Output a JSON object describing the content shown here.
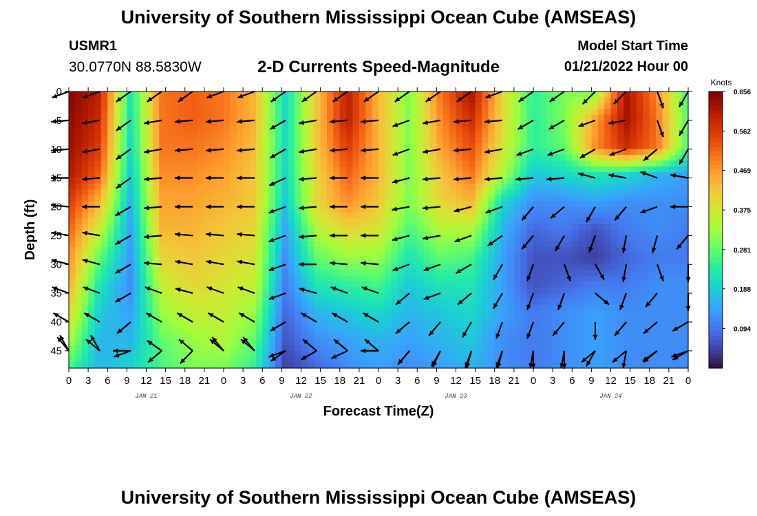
{
  "header": {
    "title": "University of Southern Mississippi Ocean Cube (AMSEAS)",
    "station_id": "USMR1",
    "station_coords": "30.0770N  88.5830W",
    "subtitle": "2-D Currents Speed-Magnitude",
    "start_label": "Model Start Time",
    "start_value": "01/21/2022 Hour 00"
  },
  "footer": {
    "title": "University of Southern Mississippi Ocean Cube (AMSEAS)"
  },
  "chart_data": {
    "type": "heatmap",
    "title": "2-D Currents Speed-Magnitude",
    "xlabel": "Forecast Time(Z)",
    "ylabel": "Depth (ft)",
    "x_tick_labels": [
      "0",
      "3",
      "6",
      "9",
      "12",
      "15",
      "18",
      "21",
      "0",
      "3",
      "6",
      "9",
      "12",
      "15",
      "18",
      "21",
      "0",
      "3",
      "6",
      "9",
      "12",
      "15",
      "18",
      "21",
      "0",
      "3",
      "6",
      "9",
      "12",
      "15",
      "18",
      "21",
      "0"
    ],
    "x_hours_range": [
      0,
      96
    ],
    "date_labels": [
      {
        "text": "JAN 21",
        "hour": 12
      },
      {
        "text": "JAN 22",
        "hour": 36
      },
      {
        "text": "JAN 23",
        "hour": 60
      },
      {
        "text": "JAN 24",
        "hour": 84
      }
    ],
    "y_ticks": [
      0,
      5,
      10,
      15,
      20,
      25,
      30,
      35,
      40,
      45
    ],
    "ylim": [
      48,
      0
    ],
    "colorbar": {
      "unit": "Knots",
      "labels": [
        "0.656",
        "0.562",
        "0.469",
        "0.375",
        "0.281",
        "0.188",
        "0.094"
      ],
      "range": [
        0,
        0.656
      ],
      "colors": [
        "#30123b",
        "#4145ab",
        "#4675ed",
        "#39a2fc",
        "#1bcfd4",
        "#24eca6",
        "#61fc6c",
        "#a4fc3b",
        "#d1e834",
        "#f3c63a",
        "#fe9b2d",
        "#f36315",
        "#d93806",
        "#b11901",
        "#7a0402"
      ]
    },
    "speed_knots": [
      [
        0.65,
        0.6,
        0.22,
        0.5,
        0.52,
        0.5,
        0.44,
        0.2,
        0.42,
        0.6,
        0.44,
        0.3,
        0.5,
        0.62,
        0.4,
        0.24,
        0.3,
        0.3,
        0.62,
        0.48,
        0.25
      ],
      [
        0.64,
        0.58,
        0.21,
        0.5,
        0.52,
        0.5,
        0.44,
        0.2,
        0.42,
        0.6,
        0.44,
        0.3,
        0.48,
        0.58,
        0.4,
        0.24,
        0.3,
        0.46,
        0.62,
        0.5,
        0.26
      ],
      [
        0.63,
        0.56,
        0.2,
        0.5,
        0.5,
        0.48,
        0.43,
        0.2,
        0.42,
        0.56,
        0.44,
        0.3,
        0.46,
        0.54,
        0.38,
        0.24,
        0.28,
        0.48,
        0.58,
        0.5,
        0.26
      ],
      [
        0.61,
        0.52,
        0.18,
        0.48,
        0.48,
        0.46,
        0.42,
        0.2,
        0.4,
        0.52,
        0.44,
        0.3,
        0.42,
        0.5,
        0.34,
        0.18,
        0.2,
        0.22,
        0.2,
        0.16,
        0.14
      ],
      [
        0.56,
        0.44,
        0.16,
        0.46,
        0.46,
        0.44,
        0.42,
        0.18,
        0.4,
        0.48,
        0.42,
        0.3,
        0.4,
        0.44,
        0.2,
        0.12,
        0.12,
        0.14,
        0.12,
        0.12,
        0.12
      ],
      [
        0.52,
        0.36,
        0.14,
        0.44,
        0.44,
        0.42,
        0.4,
        0.14,
        0.34,
        0.4,
        0.38,
        0.26,
        0.34,
        0.34,
        0.16,
        0.08,
        0.1,
        0.06,
        0.1,
        0.12,
        0.1
      ],
      [
        0.48,
        0.28,
        0.13,
        0.4,
        0.42,
        0.4,
        0.38,
        0.12,
        0.28,
        0.32,
        0.32,
        0.22,
        0.28,
        0.26,
        0.14,
        0.06,
        0.06,
        0.04,
        0.08,
        0.1,
        0.1
      ],
      [
        0.45,
        0.22,
        0.12,
        0.36,
        0.4,
        0.38,
        0.36,
        0.1,
        0.22,
        0.24,
        0.26,
        0.18,
        0.22,
        0.22,
        0.14,
        0.06,
        0.08,
        0.1,
        0.1,
        0.12,
        0.12
      ],
      [
        0.4,
        0.18,
        0.14,
        0.32,
        0.36,
        0.36,
        0.32,
        0.08,
        0.16,
        0.18,
        0.2,
        0.16,
        0.18,
        0.2,
        0.14,
        0.1,
        0.12,
        0.14,
        0.12,
        0.12,
        0.12
      ],
      [
        0.34,
        0.16,
        0.16,
        0.28,
        0.32,
        0.34,
        0.28,
        0.06,
        0.12,
        0.14,
        0.16,
        0.14,
        0.16,
        0.18,
        0.12,
        0.1,
        0.12,
        0.14,
        0.12,
        0.12,
        0.12
      ],
      [
        0.26,
        0.16,
        0.2,
        0.26,
        0.3,
        0.3,
        0.24,
        0.04,
        0.08,
        0.12,
        0.14,
        0.12,
        0.14,
        0.16,
        0.12,
        0.1,
        0.12,
        0.14,
        0.12,
        0.12,
        0.12
      ]
    ],
    "vector_directions_deg": [
      [
        200,
        200,
        215,
        215,
        215,
        200,
        200,
        215,
        215,
        215,
        215,
        215,
        215,
        215,
        200,
        215,
        215,
        225,
        225,
        290,
        240
      ],
      [
        185,
        190,
        215,
        190,
        185,
        185,
        185,
        210,
        190,
        185,
        185,
        200,
        190,
        185,
        185,
        210,
        210,
        200,
        190,
        290,
        240
      ],
      [
        185,
        190,
        215,
        190,
        185,
        185,
        185,
        210,
        190,
        185,
        185,
        200,
        190,
        185,
        190,
        200,
        200,
        210,
        200,
        220,
        240
      ],
      [
        180,
        185,
        215,
        185,
        180,
        180,
        180,
        205,
        185,
        180,
        180,
        195,
        185,
        185,
        185,
        185,
        185,
        165,
        170,
        160,
        170
      ],
      [
        175,
        180,
        210,
        185,
        180,
        180,
        180,
        200,
        185,
        180,
        180,
        190,
        185,
        195,
        200,
        230,
        220,
        240,
        230,
        200,
        180
      ],
      [
        170,
        170,
        210,
        185,
        175,
        175,
        175,
        200,
        185,
        180,
        180,
        195,
        190,
        200,
        215,
        230,
        240,
        250,
        260,
        255,
        230
      ],
      [
        165,
        165,
        210,
        175,
        170,
        170,
        170,
        200,
        180,
        175,
        175,
        200,
        200,
        210,
        240,
        250,
        290,
        300,
        260,
        290,
        270
      ],
      [
        160,
        160,
        210,
        160,
        165,
        160,
        160,
        200,
        165,
        160,
        160,
        220,
        200,
        220,
        240,
        250,
        250,
        320,
        250,
        230,
        270
      ],
      [
        150,
        150,
        220,
        150,
        150,
        150,
        150,
        210,
        150,
        150,
        150,
        220,
        230,
        240,
        250,
        250,
        230,
        270,
        230,
        220,
        210
      ],
      [
        130,
        140,
        200,
        145,
        140,
        140,
        140,
        200,
        140,
        140,
        140,
        230,
        240,
        250,
        250,
        260,
        270,
        240,
        260,
        220,
        210
      ],
      [
        120,
        120,
        180,
        220,
        225,
        130,
        130,
        215,
        210,
        205,
        180,
        230,
        245,
        255,
        255,
        270,
        260,
        220,
        220,
        215,
        200
      ]
    ]
  }
}
